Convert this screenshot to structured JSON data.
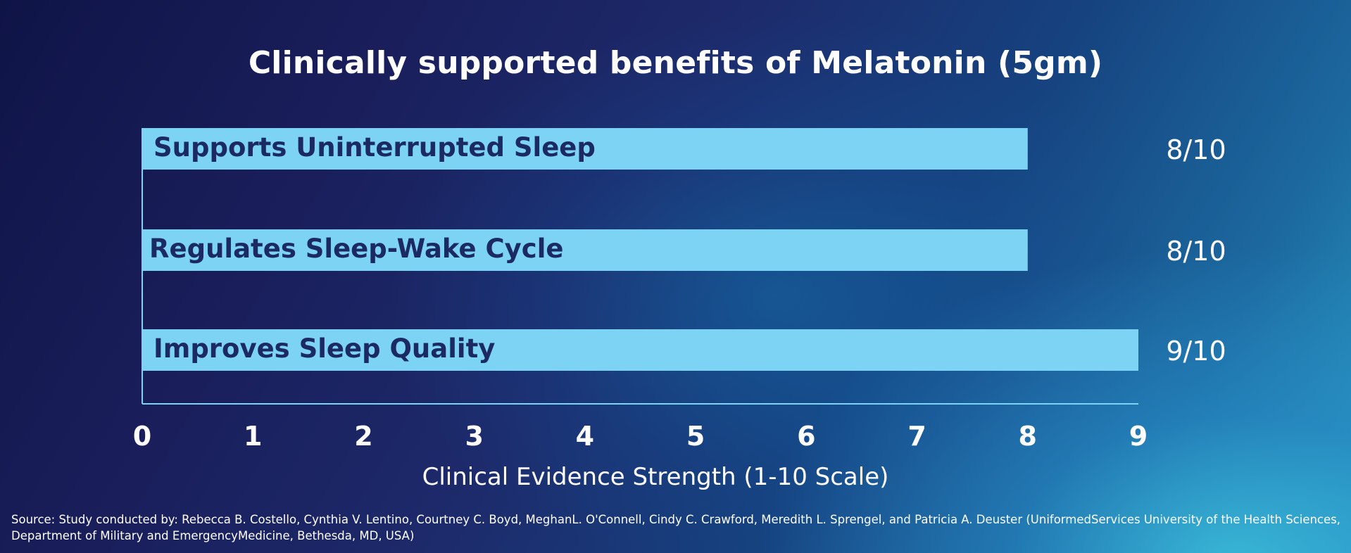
{
  "chart_data": {
    "type": "bar",
    "orientation": "horizontal",
    "title": "Clinically supported benefits of Melatonin (5gm)",
    "xlabel": "Clinical Evidence Strength (1-10 Scale)",
    "ylabel": "",
    "xlim": [
      0,
      9
    ],
    "ticks": [
      "0",
      "1",
      "2",
      "3",
      "4",
      "5",
      "6",
      "7",
      "8",
      "9"
    ],
    "categories": [
      "Supports Uninterrupted Sleep",
      "Regulates Sleep-Wake Cycle",
      "Improves Sleep Quality"
    ],
    "values": [
      8,
      8,
      9
    ],
    "value_labels": [
      "8/10",
      "8/10",
      "9/10"
    ],
    "bar_color": "#7dd3f4",
    "bar_text_color": "#1b2a63",
    "axis_color": "#7dd3f4"
  },
  "source": "Source: Study conducted by: Rebecca B. Costello, Cynthia V. Lentino, Courtney C. Boyd, MeghanL. O'Connell, Cindy C. Crawford, Meredith L. Sprengel, and Patricia A. Deuster (UniformedServices University of the Health Sciences, Department of Military and EmergencyMedicine, Bethesda, MD, USA)"
}
